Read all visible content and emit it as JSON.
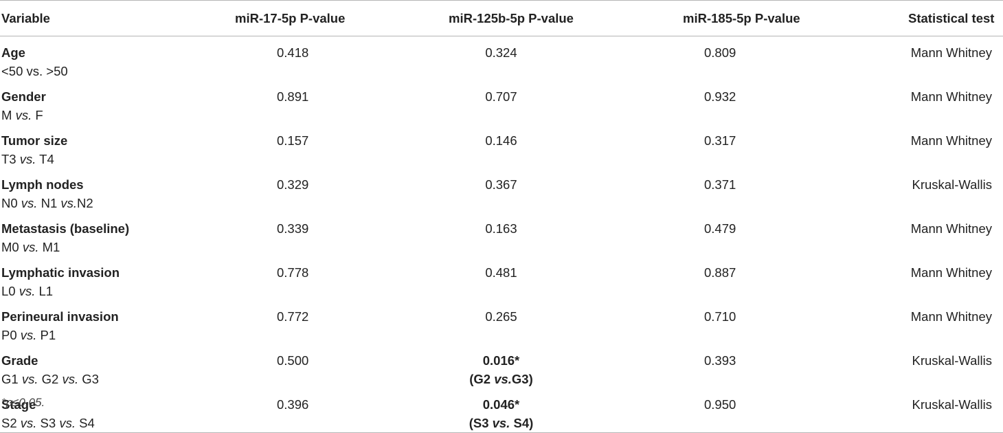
{
  "table": {
    "headers": {
      "variable": "Variable",
      "mir17": "miR-17-5p P-value",
      "mir125b": "miR-125b-5p P-value",
      "mir185": "miR-185-5p P-value",
      "test": "Statistical test"
    },
    "rows": [
      {
        "name": "Age",
        "sub_parts": [
          "<50 vs. >50"
        ],
        "mir17": "0.418",
        "mir125b": "0.324",
        "mir125b_note": "",
        "mir185": "0.809",
        "test": "Mann Whitney"
      },
      {
        "name": "Gender",
        "sub_a": "M ",
        "sub_vs": "vs.",
        "sub_b": " F",
        "mir17": "0.891",
        "mir125b": "0.707",
        "mir125b_note": "",
        "mir185": "0.932",
        "test": "Mann Whitney"
      },
      {
        "name": "Tumor size",
        "sub_a": "T3 ",
        "sub_vs": "vs.",
        "sub_b": " T4",
        "mir17": "0.157",
        "mir125b": "0.146",
        "mir125b_note": "",
        "mir185": "0.317",
        "test": "Mann Whitney"
      },
      {
        "name": "Lymph nodes",
        "sub_a": "N0 ",
        "sub_vs": "vs.",
        "sub_b": " N1 ",
        "sub_vs2": "vs.",
        "sub_c": "N2",
        "mir17": "0.329",
        "mir125b": "0.367",
        "mir125b_note": "",
        "mir185": "0.371",
        "test": "Kruskal-Wallis"
      },
      {
        "name": "Metastasis (baseline)",
        "sub_a": "M0 ",
        "sub_vs": "vs.",
        "sub_b": " M1",
        "mir17": "0.339",
        "mir125b": "0.163",
        "mir125b_note": "",
        "mir185": "0.479",
        "test": "Mann Whitney"
      },
      {
        "name": "Lymphatic invasion",
        "sub_a": "L0 ",
        "sub_vs": "vs.",
        "sub_b": " L1",
        "mir17": "0.778",
        "mir125b": "0.481",
        "mir125b_note": "",
        "mir185": "0.887",
        "test": "Mann Whitney"
      },
      {
        "name": "Perineural invasion",
        "sub_a": "P0 ",
        "sub_vs": "vs.",
        "sub_b": " P1",
        "mir17": "0.772",
        "mir125b": "0.265",
        "mir125b_note": "",
        "mir185": "0.710",
        "test": "Mann Whitney"
      },
      {
        "name": "Grade",
        "sub_a": "G1 ",
        "sub_vs": "vs.",
        "sub_b": " G2 ",
        "sub_vs2": "vs.",
        "sub_c": " G3",
        "mir17": "0.500",
        "mir125b": "0.016*",
        "mir125b_note_a": "(G2 ",
        "mir125b_note_vs": "vs.",
        "mir125b_note_b": "G3)",
        "mir185": "0.393",
        "test": "Kruskal-Wallis"
      },
      {
        "name": "Stage",
        "sub_a": "S2 ",
        "sub_vs": "vs.",
        "sub_b": " S3 ",
        "sub_vs2": "vs.",
        "sub_c": " S4",
        "mir17": "0.396",
        "mir125b": "0.046*",
        "mir125b_note_a": "(S3 ",
        "mir125b_note_vs": "vs.",
        "mir125b_note_b": " S4)",
        "mir185": "0.950",
        "test": "Kruskal-Wallis"
      }
    ],
    "footnote": "*p≤0.05."
  }
}
